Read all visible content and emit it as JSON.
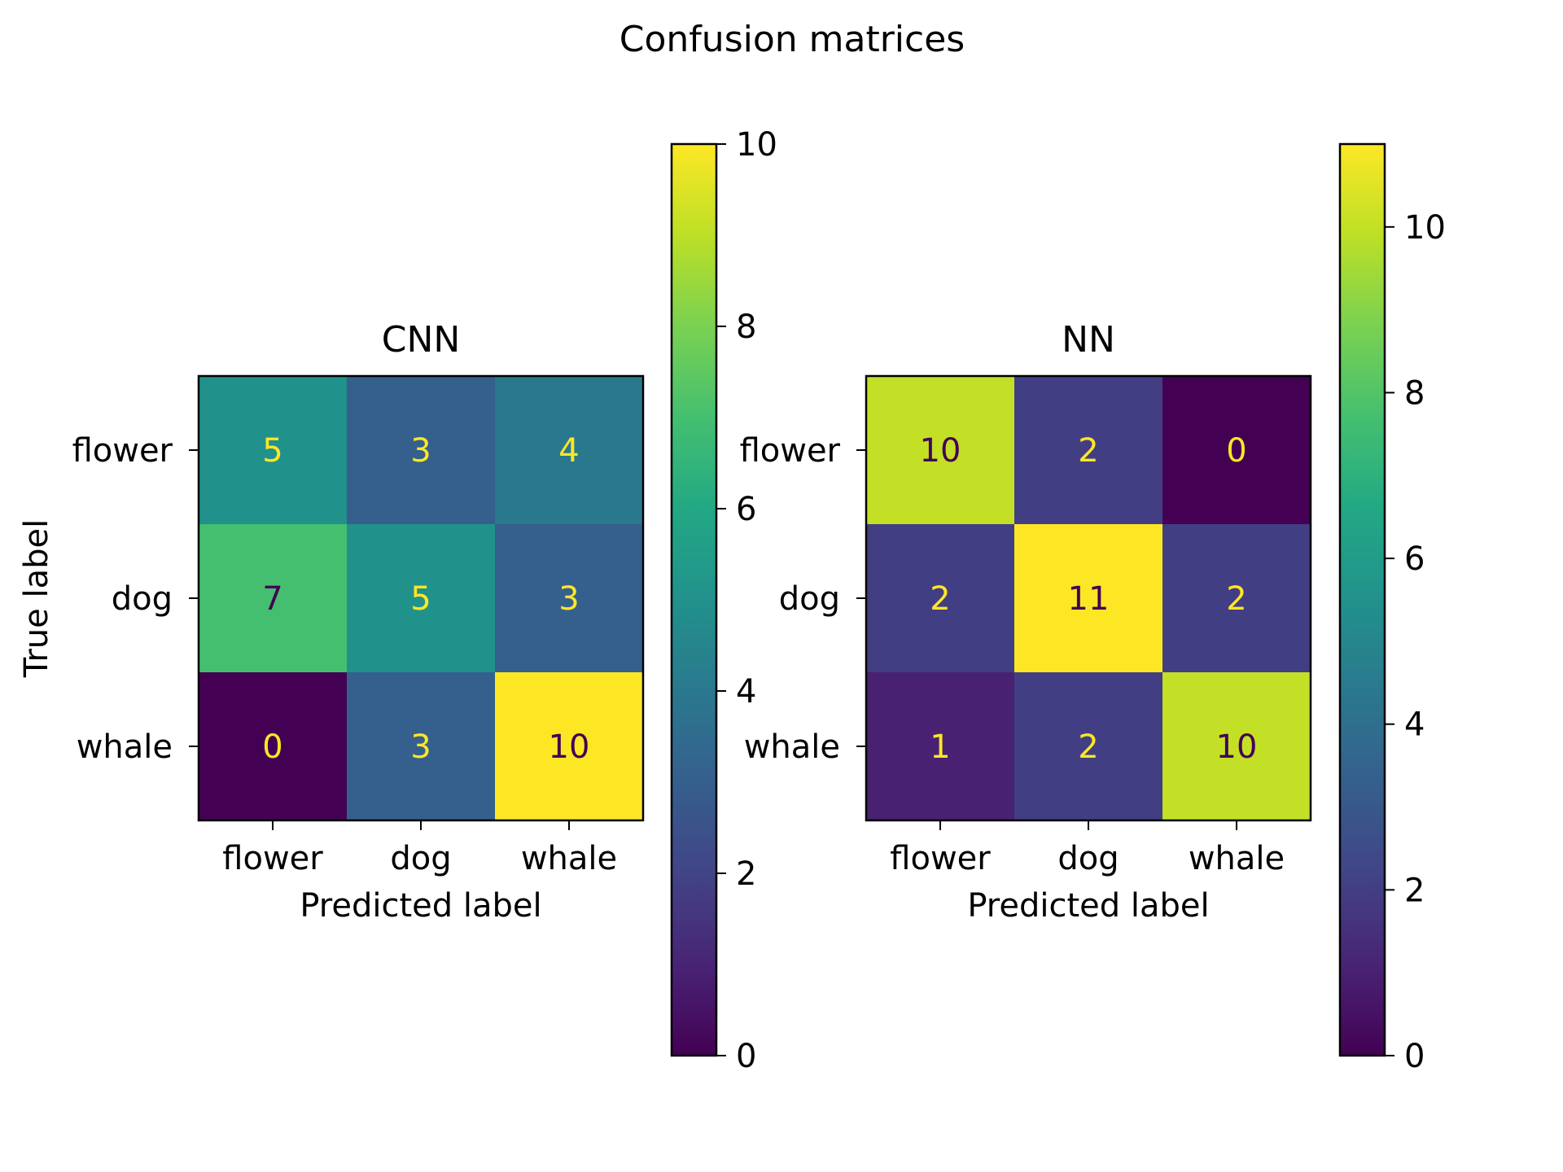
{
  "figure": {
    "title": "Confusion matrices"
  },
  "chart_data": [
    {
      "type": "heatmap",
      "title": "CNN",
      "xlabel": "Predicted label",
      "ylabel": "True label",
      "x_categories": [
        "flower",
        "dog",
        "whale"
      ],
      "y_categories": [
        "flower",
        "dog",
        "whale"
      ],
      "values": [
        [
          5,
          3,
          4
        ],
        [
          7,
          5,
          3
        ],
        [
          0,
          3,
          10
        ]
      ],
      "colormap": "viridis",
      "colorbar": {
        "range": [
          0,
          10
        ],
        "ticks": [
          0,
          2,
          4,
          6,
          8,
          10
        ]
      },
      "grid": false
    },
    {
      "type": "heatmap",
      "title": "NN",
      "xlabel": "Predicted label",
      "ylabel": "",
      "x_categories": [
        "flower",
        "dog",
        "whale"
      ],
      "y_categories": [
        "flower",
        "dog",
        "whale"
      ],
      "values": [
        [
          10,
          2,
          0
        ],
        [
          2,
          11,
          2
        ],
        [
          1,
          2,
          10
        ]
      ],
      "colormap": "viridis",
      "colorbar": {
        "range": [
          0,
          11
        ],
        "ticks": [
          0,
          2,
          4,
          6,
          8,
          10
        ]
      },
      "grid": false
    }
  ]
}
